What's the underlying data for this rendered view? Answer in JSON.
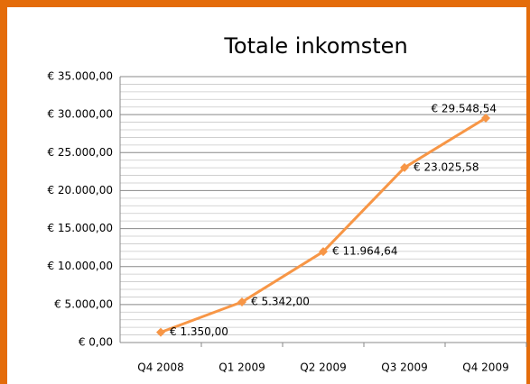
{
  "chart_data": {
    "type": "line",
    "title": "Totale inkomsten",
    "categories": [
      "Q4 2008",
      "Q1 2009",
      "Q2 2009",
      "Q3 2009",
      "Q4 2009"
    ],
    "series": [
      {
        "name": "Totale inkomsten",
        "color": "#f79646",
        "values": [
          1350,
          5342,
          11964.64,
          23025.58,
          29548.54
        ],
        "value_labels": [
          "€ 1.350,00",
          "€ 5.342,00",
          "€ 11.964,64",
          "€ 23.025,58",
          "€ 29.548,54"
        ]
      }
    ],
    "ylim": [
      0,
      35000
    ],
    "yticks": [
      {
        "value": 0,
        "label": "€ 0,00"
      },
      {
        "value": 5000,
        "label": "€ 5.000,00"
      },
      {
        "value": 10000,
        "label": "€ 10.000,00"
      },
      {
        "value": 15000,
        "label": "€ 15.000,00"
      },
      {
        "value": 20000,
        "label": "€ 20.000,00"
      },
      {
        "value": 25000,
        "label": "€ 25.000,00"
      },
      {
        "value": 30000,
        "label": "€ 30.000,00"
      },
      {
        "value": 35000,
        "label": "€ 35.000,00"
      }
    ],
    "yminorticks": [
      1000,
      2000,
      3000,
      4000,
      6000,
      7000,
      8000,
      9000,
      11000,
      12000,
      13000,
      14000,
      16000,
      17000,
      18000,
      19000,
      21000,
      22000,
      23000,
      24000,
      26000,
      27000,
      28000,
      29000,
      31000,
      32000,
      33000,
      34000
    ],
    "grid": true,
    "border_color": "#e46c0a"
  }
}
